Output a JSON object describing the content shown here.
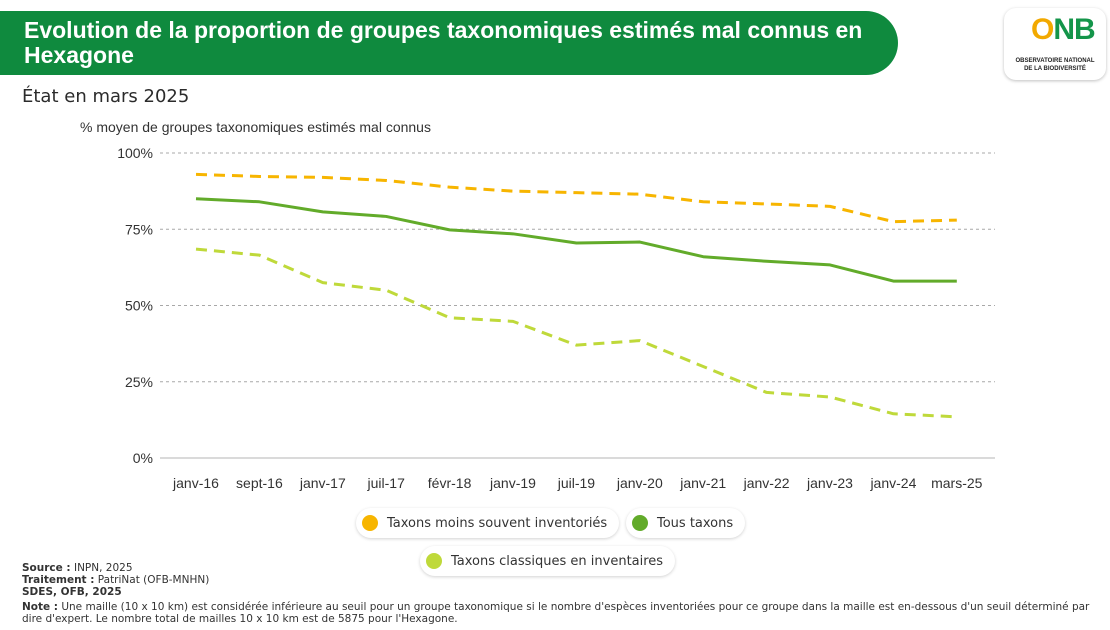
{
  "header": {
    "title": "Evolution de la proportion de groupes taxonomiques estimés mal connus en Hexagone",
    "subtitle": "État en mars 2025"
  },
  "logo": {
    "mark_o": "O",
    "mark_nb": "NB",
    "line1": "OBSERVATOIRE NATIONAL",
    "line2": "DE LA BIODIVERSITÉ"
  },
  "chart_data": {
    "type": "line",
    "ylabel": "% moyen de groupes taxonomiques estimés mal connus",
    "ylim": [
      0,
      100
    ],
    "yticks": [
      0,
      25,
      50,
      75,
      100
    ],
    "ytick_labels": [
      "0%",
      "25%",
      "50%",
      "75%",
      "100%"
    ],
    "grid": true,
    "legend_position": "bottom",
    "categories": [
      "janv-16",
      "sept-16",
      "janv-17",
      "juil-17",
      "févr-18",
      "janv-19",
      "juil-19",
      "janv-20",
      "janv-21",
      "janv-22",
      "janv-23",
      "janv-24",
      "mars-25"
    ],
    "series": [
      {
        "name": "Taxons moins souvent inventoriés",
        "color": "#f7b500",
        "style": "dashed",
        "values": [
          93,
          92.3,
          92,
          91,
          88.8,
          87.5,
          87,
          86.5,
          84,
          83.3,
          82.5,
          77.5,
          78
        ]
      },
      {
        "name": "Tous taxons",
        "color": "#62ab2a",
        "style": "solid",
        "values": [
          85,
          84,
          80.7,
          79.2,
          74.8,
          73.5,
          70.5,
          70.8,
          66,
          64.5,
          63.3,
          58,
          58
        ]
      },
      {
        "name": "Taxons classiques en inventaires",
        "color": "#bfd93a",
        "style": "dashed",
        "values": [
          68.5,
          66.5,
          57.5,
          55,
          46,
          44.8,
          37,
          38.5,
          30,
          21.5,
          20,
          14.5,
          13.5
        ]
      }
    ]
  },
  "footer": {
    "source_label": "Source :",
    "source_value": " INPN, 2025",
    "treatment_label": "Traitement :",
    "treatment_value": " PatriNat (OFB-MNHN)",
    "credit": "SDES, OFB, 2025",
    "note_label": "Note :",
    "note_value": " Une maille (10 x 10 km) est considérée inférieure au seuil pour un groupe taxonomique si le nombre d'espèces inventoriées pour ce groupe dans la maille est en-dessous d'un seuil déterminé par dire d'expert. Le nombre total de mailles 10 x 10 km est de 5875 pour l'Hexagone."
  }
}
